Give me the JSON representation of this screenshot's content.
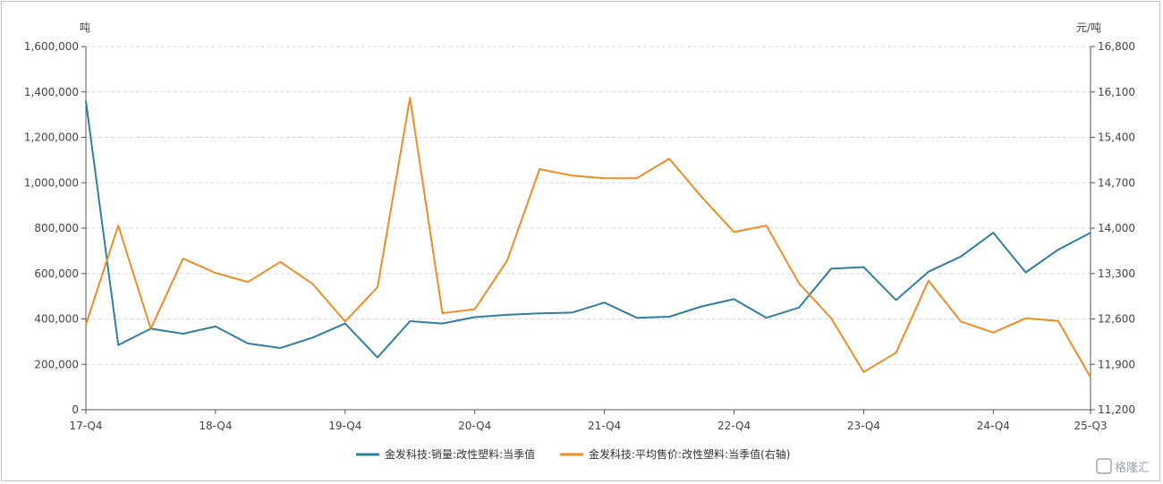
{
  "chart_data": {
    "type": "line",
    "left_unit": "吨",
    "right_unit": "元/吨",
    "ylim_left": [
      0,
      1600000
    ],
    "ylim_right": [
      11200,
      16800
    ],
    "left_ticks": [
      "0",
      "200,000",
      "400,000",
      "600,000",
      "800,000",
      "1,000,000",
      "1,200,000",
      "1,400,000",
      "1,600,000"
    ],
    "right_ticks": [
      "11,200",
      "11,900",
      "12,600",
      "13,300",
      "14,000",
      "14,700",
      "15,400",
      "16,100",
      "16,800"
    ],
    "left_tick_values": [
      0,
      200000,
      400000,
      600000,
      800000,
      1000000,
      1200000,
      1400000,
      1600000
    ],
    "right_tick_values": [
      11200,
      11900,
      12600,
      13300,
      14000,
      14700,
      15400,
      16100,
      16800
    ],
    "x": [
      "17-Q4",
      "18-Q1",
      "18-Q2",
      "18-Q3",
      "18-Q4",
      "19-Q1",
      "19-Q2",
      "19-Q3",
      "19-Q4",
      "20-Q1",
      "20-Q2",
      "20-Q3",
      "20-Q4",
      "21-Q1",
      "21-Q2",
      "21-Q3",
      "21-Q4",
      "22-Q1",
      "22-Q2",
      "22-Q3",
      "22-Q4",
      "23-Q1",
      "23-Q2",
      "23-Q3",
      "23-Q4",
      "24-Q1",
      "24-Q2",
      "24-Q3",
      "24-Q4",
      "25-Q1",
      "25-Q2",
      "25-Q3"
    ],
    "x_tick_labels": [
      {
        "index": 0,
        "label": "17-Q4"
      },
      {
        "index": 4,
        "label": "18-Q4"
      },
      {
        "index": 8,
        "label": "19-Q4"
      },
      {
        "index": 12,
        "label": "20-Q4"
      },
      {
        "index": 16,
        "label": "21-Q4"
      },
      {
        "index": 20,
        "label": "22-Q4"
      },
      {
        "index": 24,
        "label": "23-Q4"
      },
      {
        "index": 28,
        "label": "24-Q4"
      },
      {
        "index": 31,
        "label": "25-Q3"
      }
    ],
    "series": [
      {
        "name": "金发科技:销量:改性塑料:当季值",
        "axis": "left",
        "color": "#2e7fa3",
        "values": [
          1360000,
          285000,
          357000,
          335000,
          367000,
          292000,
          272000,
          318000,
          380000,
          230000,
          390000,
          380000,
          408000,
          418000,
          425000,
          428000,
          472000,
          405000,
          410000,
          455000,
          487000,
          405000,
          450000,
          622000,
          628000,
          483000,
          608000,
          675000,
          780000,
          605000,
          705000,
          780000
        ]
      },
      {
        "name": "金发科技:平均售价:改性塑料:当季值(右轴)",
        "axis": "right",
        "color": "#f08c24",
        "values": [
          12510,
          14040,
          12450,
          13530,
          13310,
          13170,
          13480,
          13140,
          12560,
          13090,
          16010,
          12690,
          12750,
          13500,
          14910,
          14810,
          14770,
          14770,
          15070,
          14480,
          13940,
          14040,
          13150,
          12610,
          11780,
          12080,
          13190,
          12560,
          12390,
          12610,
          12570,
          11700
        ]
      }
    ],
    "grid": true,
    "legend_position": "bottom-center"
  },
  "watermark": "格隆汇"
}
